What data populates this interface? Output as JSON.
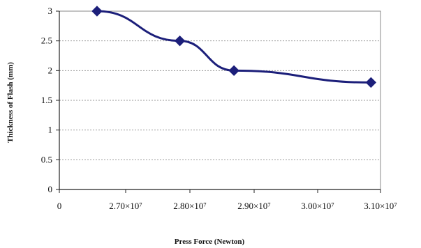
{
  "chart_data": {
    "type": "line",
    "title": "",
    "xlabel": "Press Force (Newton)",
    "ylabel": "Thickness of Flash (mm)",
    "x_tick_labels": [
      "0",
      "2.70×10⁷",
      "2.80×10⁷",
      "2.90×10⁷",
      "3.00×10⁷",
      "3.10×10⁷"
    ],
    "y_tick_labels": [
      "0",
      "0.5",
      "1",
      "1.5",
      "2",
      "2.5",
      "3"
    ],
    "ylim": [
      0,
      3
    ],
    "grid": "horizontal",
    "legend": "none",
    "series": [
      {
        "color": "#1c1f7a",
        "marker": "diamond",
        "points": [
          {
            "x": 26550000,
            "y": 3.0
          },
          {
            "x": 27850000,
            "y": 2.5
          },
          {
            "x": 28700000,
            "y": 2.0
          },
          {
            "x": 30850000,
            "y": 1.8
          }
        ]
      }
    ]
  }
}
